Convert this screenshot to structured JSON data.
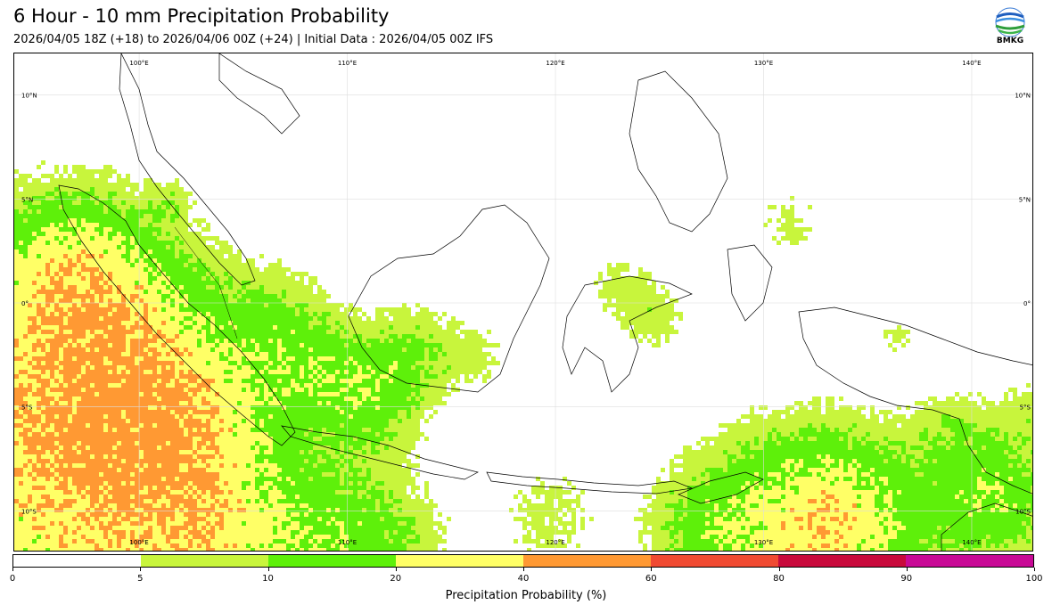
{
  "header": {
    "title": "6 Hour - 10 mm Precipitation Probability",
    "subtitle": "2026/04/05 18Z (+18) to 2026/04/06 00Z (+24) | Initial Data : 2026/04/05 00Z IFS"
  },
  "logo": {
    "text": "BMKG",
    "icon": "bmkg-logo-icon"
  },
  "map": {
    "lon_range": [
      94,
      143
    ],
    "lat_range": [
      -12,
      12
    ],
    "grid": true,
    "lon_ticks": [
      {
        "value": 100,
        "label": "100°E"
      },
      {
        "value": 110,
        "label": "110°E"
      },
      {
        "value": 120,
        "label": "120°E"
      },
      {
        "value": 130,
        "label": "130°E"
      },
      {
        "value": 140,
        "label": "140°E"
      }
    ],
    "lat_ticks": [
      {
        "value": 10,
        "label": "10°N"
      },
      {
        "value": 5,
        "label": "5°N"
      },
      {
        "value": 0,
        "label": "0°"
      },
      {
        "value": -5,
        "label": "5°S"
      },
      {
        "value": -10,
        "label": "10°S"
      }
    ]
  },
  "colorbar": {
    "label": "Precipitation Probability (%)",
    "bins": [
      {
        "from": 0,
        "to": 5,
        "color": "#ffffff"
      },
      {
        "from": 5,
        "to": 10,
        "color": "#c8f53c"
      },
      {
        "from": 10,
        "to": 20,
        "color": "#5ef00a"
      },
      {
        "from": 20,
        "to": 40,
        "color": "#ffff66"
      },
      {
        "from": 40,
        "to": 60,
        "color": "#ff9933"
      },
      {
        "from": 60,
        "to": 80,
        "color": "#f04a32"
      },
      {
        "from": 80,
        "to": 90,
        "color": "#c80a3c"
      },
      {
        "from": 90,
        "to": 100,
        "color": "#c80a96"
      }
    ],
    "tick_labels": [
      "0",
      "5",
      "10",
      "20",
      "40",
      "60",
      "80",
      "90",
      "100"
    ]
  }
}
